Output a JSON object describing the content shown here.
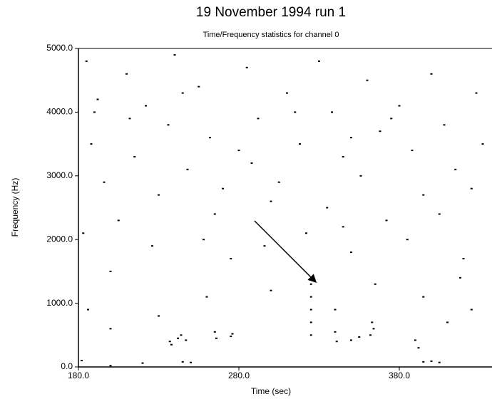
{
  "chart_data": {
    "type": "scatter",
    "title": "19 November 1994 run 1",
    "subtitle": "Time/Frequency statistics for channel 0",
    "x_label": "Time (sec)",
    "y_label": "Frequency (Hz)",
    "color": "#000000",
    "xlim": [
      180,
      436
    ],
    "ylim": [
      0,
      5000
    ],
    "xticks": [
      {
        "value": 180,
        "label": "180.0"
      },
      {
        "value": 280,
        "label": "280.0"
      },
      {
        "value": 380,
        "label": "380.0"
      }
    ],
    "yticks": [
      {
        "value": 0,
        "label": "0.0"
      },
      {
        "value": 1000,
        "label": "1000.0"
      },
      {
        "value": 2000,
        "label": "2000.0"
      },
      {
        "value": 3000,
        "label": "3000.0"
      },
      {
        "value": 4000,
        "label": "4000.0"
      },
      {
        "value": 5000,
        "label": "5000.0"
      }
    ],
    "x": [
      185,
      192,
      188,
      196,
      183,
      200,
      186,
      210,
      222,
      215,
      230,
      205,
      240,
      236,
      248,
      226,
      255,
      262,
      270,
      258,
      275,
      285,
      292,
      288,
      300,
      296,
      310,
      318,
      305,
      322,
      330,
      338,
      345,
      335,
      350,
      360,
      368,
      356,
      372,
      380,
      388,
      395,
      385,
      400,
      408,
      415,
      405,
      420,
      428,
      432,
      425,
      418,
      395,
      365,
      340,
      300,
      260,
      230,
      200,
      410,
      425,
      190,
      245,
      315,
      375,
      212,
      280,
      350,
      265,
      345,
      237,
      238,
      242,
      244,
      247,
      265,
      266,
      275,
      276,
      325,
      325,
      325,
      325,
      325,
      340,
      341,
      350,
      355,
      362,
      363,
      364,
      390,
      392,
      395,
      400,
      405,
      182,
      220,
      245,
      250,
      200
    ],
    "values": [
      4800,
      4200,
      3500,
      2900,
      2100,
      1500,
      900,
      4600,
      4100,
      3300,
      2700,
      2300,
      4900,
      3800,
      3100,
      1900,
      4400,
      3600,
      2800,
      2000,
      1700,
      4700,
      3900,
      3200,
      2600,
      1900,
      4300,
      3500,
      2900,
      2100,
      4800,
      4000,
      3300,
      2500,
      1800,
      4500,
      3700,
      3000,
      2300,
      4100,
      3400,
      2700,
      2000,
      4600,
      3800,
      3100,
      2400,
      1700,
      4300,
      3500,
      2800,
      1400,
      1100,
      1300,
      900,
      1200,
      1100,
      800,
      600,
      700,
      900,
      4000,
      4300,
      4000,
      3900,
      3900,
      3400,
      3600,
      2400,
      2200,
      400,
      350,
      450,
      500,
      420,
      550,
      450,
      480,
      520,
      1300,
      1100,
      900,
      700,
      500,
      550,
      400,
      420,
      470,
      500,
      700,
      600,
      420,
      300,
      80,
      90,
      70,
      100,
      60,
      80,
      70,
      20
    ]
  }
}
